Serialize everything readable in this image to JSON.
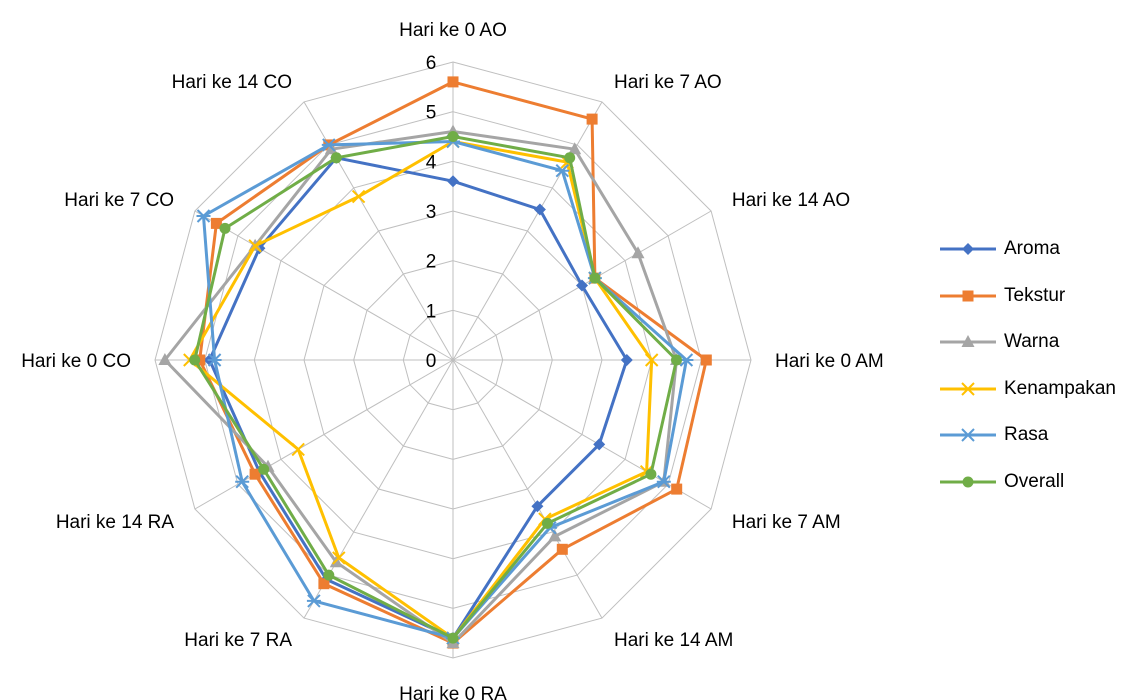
{
  "chart_data": {
    "type": "radar",
    "title": "",
    "rlim": [
      0,
      6
    ],
    "r_ticks": [
      "0",
      "1",
      "2",
      "3",
      "4",
      "5",
      "6"
    ],
    "grid": true,
    "legend_position": "right",
    "categories": [
      "Hari ke 0 AO",
      "Hari ke 7 AO",
      "Hari ke 14 AO",
      "Hari ke 0 AM",
      "Hari ke 7 AM",
      "Hari ke 14 AM",
      "Hari ke 0 RA",
      "Hari ke 7 RA",
      "Hari ke 14 RA",
      "Hari ke 0 CO",
      "Hari ke 7 CO",
      "Hari ke 14 CO"
    ],
    "series": [
      {
        "name": "Aroma",
        "color": "#4472C4",
        "marker": "diamond",
        "values": [
          3.6,
          3.5,
          3.0,
          3.5,
          3.4,
          3.4,
          5.6,
          5.1,
          4.5,
          4.9,
          4.5,
          4.7
        ]
      },
      {
        "name": "Tekstur",
        "color": "#ED7D31",
        "marker": "square",
        "values": [
          5.6,
          5.6,
          3.3,
          5.1,
          5.2,
          4.4,
          5.7,
          5.2,
          4.6,
          5.1,
          5.5,
          5.0
        ]
      },
      {
        "name": "Warna",
        "color": "#A5A5A5",
        "marker": "triangle",
        "values": [
          4.6,
          4.9,
          4.3,
          4.5,
          4.9,
          4.1,
          5.7,
          4.7,
          4.3,
          5.8,
          4.6,
          4.9
        ]
      },
      {
        "name": "Kenampakan",
        "color": "#FFC000",
        "marker": "x",
        "values": [
          4.4,
          4.6,
          3.3,
          4.0,
          4.5,
          3.7,
          5.6,
          4.6,
          3.6,
          5.3,
          4.6,
          3.8
        ]
      },
      {
        "name": "Rasa",
        "color": "#5B9BD5",
        "marker": "star",
        "values": [
          4.4,
          4.4,
          3.3,
          4.7,
          4.9,
          3.9,
          5.6,
          5.6,
          4.9,
          4.8,
          5.8,
          5.0
        ]
      },
      {
        "name": "Overall",
        "color": "#70AD47",
        "marker": "circle",
        "values": [
          4.5,
          4.7,
          3.3,
          4.5,
          4.6,
          3.8,
          5.6,
          5.0,
          4.4,
          5.2,
          5.3,
          4.7
        ]
      }
    ]
  }
}
